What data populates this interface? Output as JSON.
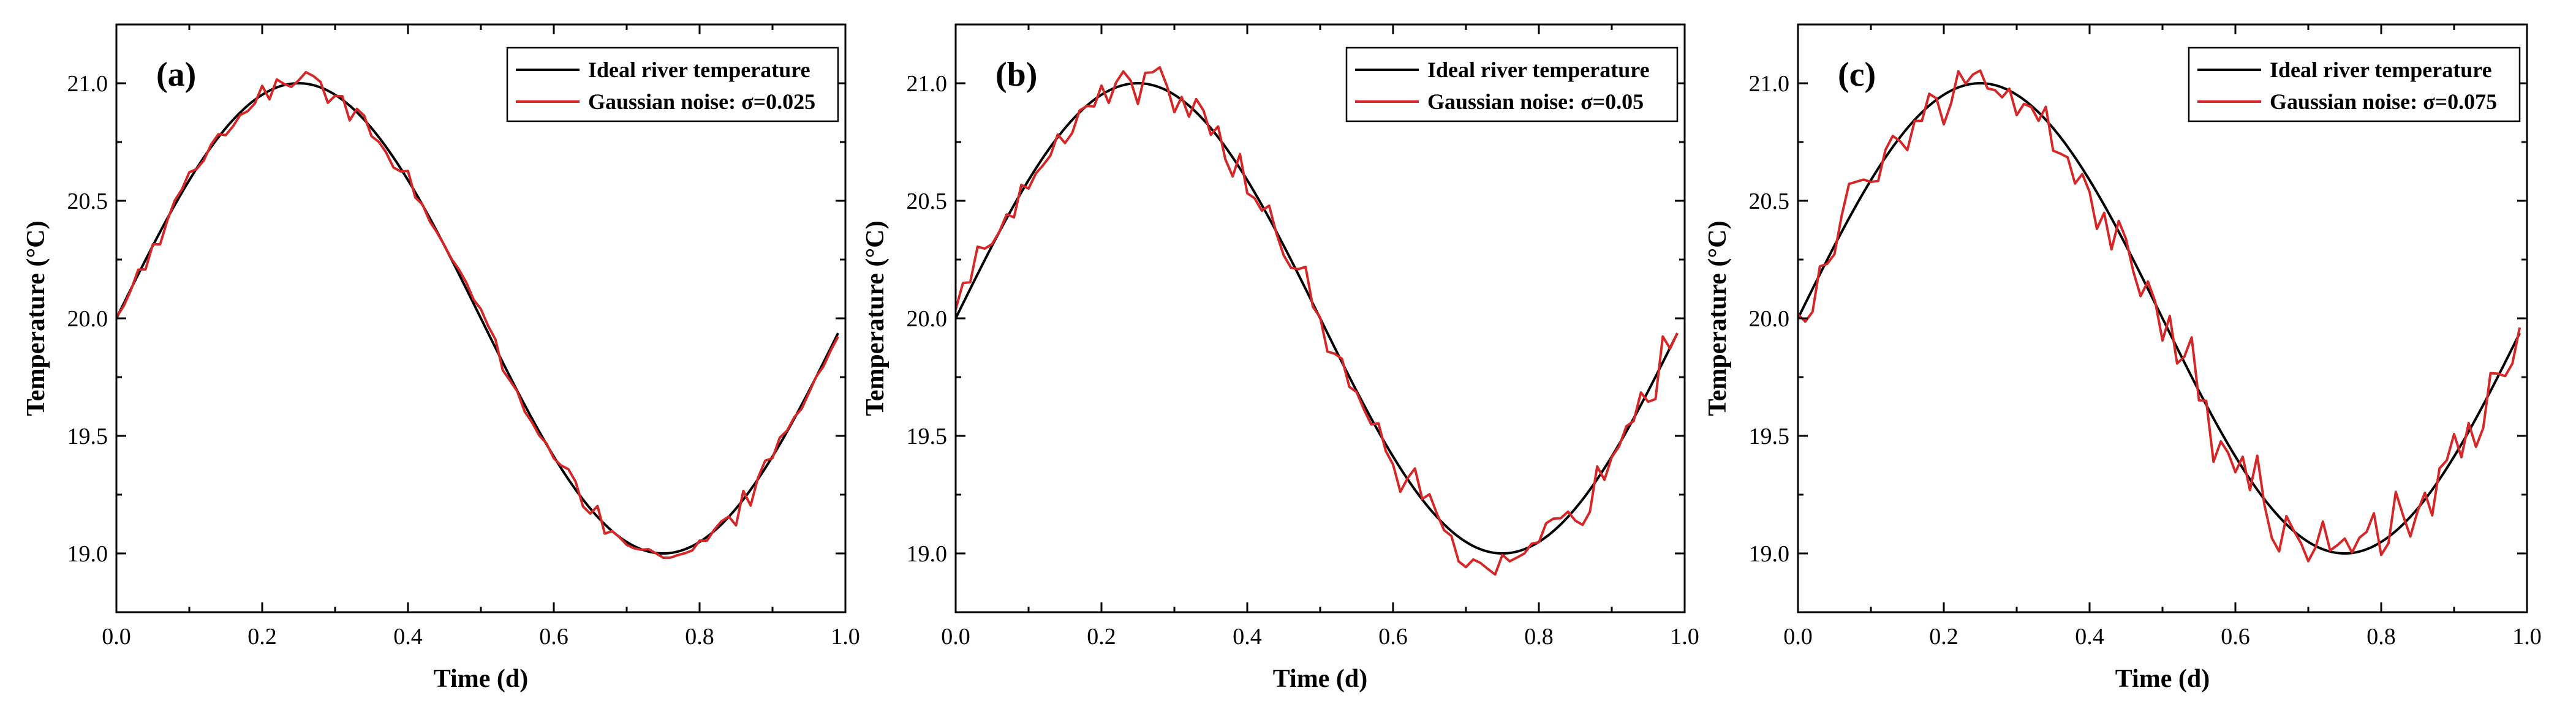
{
  "chart_data": [
    {
      "type": "line",
      "panel_label": "(a)",
      "xlabel": "Time (d)",
      "ylabel": "Temperature (°C)",
      "xlim": [
        0.0,
        1.0
      ],
      "ylim": [
        18.75,
        21.25
      ],
      "xticks": [
        "0.0",
        "0.2",
        "0.4",
        "0.6",
        "0.8",
        "1.0"
      ],
      "yticks": [
        "19.0",
        "19.5",
        "20.0",
        "20.5",
        "21.0"
      ],
      "legend_position": "top-right",
      "series": [
        {
          "name": "Ideal river temperature",
          "color": "#000000",
          "function": "20 + sin(2*pi*t)",
          "x_range": [
            0.0,
            0.99
          ]
        },
        {
          "name": "Gaussian noise: σ=0.025",
          "color": "#d62728",
          "sigma": 0.025,
          "x_range": [
            0.0,
            0.99
          ],
          "x_step": 0.01
        }
      ]
    },
    {
      "type": "line",
      "panel_label": "(b)",
      "xlabel": "Time (d)",
      "ylabel": "Temperature (°C)",
      "xlim": [
        0.0,
        1.0
      ],
      "ylim": [
        18.75,
        21.25
      ],
      "xticks": [
        "0.0",
        "0.2",
        "0.4",
        "0.6",
        "0.8",
        "1.0"
      ],
      "yticks": [
        "19.0",
        "19.5",
        "20.0",
        "20.5",
        "21.0"
      ],
      "legend_position": "top-right",
      "series": [
        {
          "name": "Ideal river temperature",
          "color": "#000000",
          "function": "20 + sin(2*pi*t)",
          "x_range": [
            0.0,
            0.99
          ]
        },
        {
          "name": "Gaussian noise: σ=0.05",
          "color": "#d62728",
          "sigma": 0.05,
          "x_range": [
            0.0,
            0.99
          ],
          "x_step": 0.01
        }
      ]
    },
    {
      "type": "line",
      "panel_label": "(c)",
      "xlabel": "Time (d)",
      "ylabel": "Temperature (°C)",
      "xlim": [
        0.0,
        1.0
      ],
      "ylim": [
        18.75,
        21.25
      ],
      "xticks": [
        "0.0",
        "0.2",
        "0.4",
        "0.6",
        "0.8",
        "1.0"
      ],
      "yticks": [
        "19.0",
        "19.5",
        "20.0",
        "20.5",
        "21.0"
      ],
      "legend_position": "top-right",
      "series": [
        {
          "name": "Ideal river temperature",
          "color": "#000000",
          "function": "20 + sin(2*pi*t)",
          "x_range": [
            0.0,
            0.99
          ]
        },
        {
          "name": "Gaussian noise: σ=0.075",
          "color": "#d62728",
          "sigma": 0.075,
          "x_range": [
            0.0,
            0.99
          ],
          "x_step": 0.01
        }
      ]
    }
  ]
}
